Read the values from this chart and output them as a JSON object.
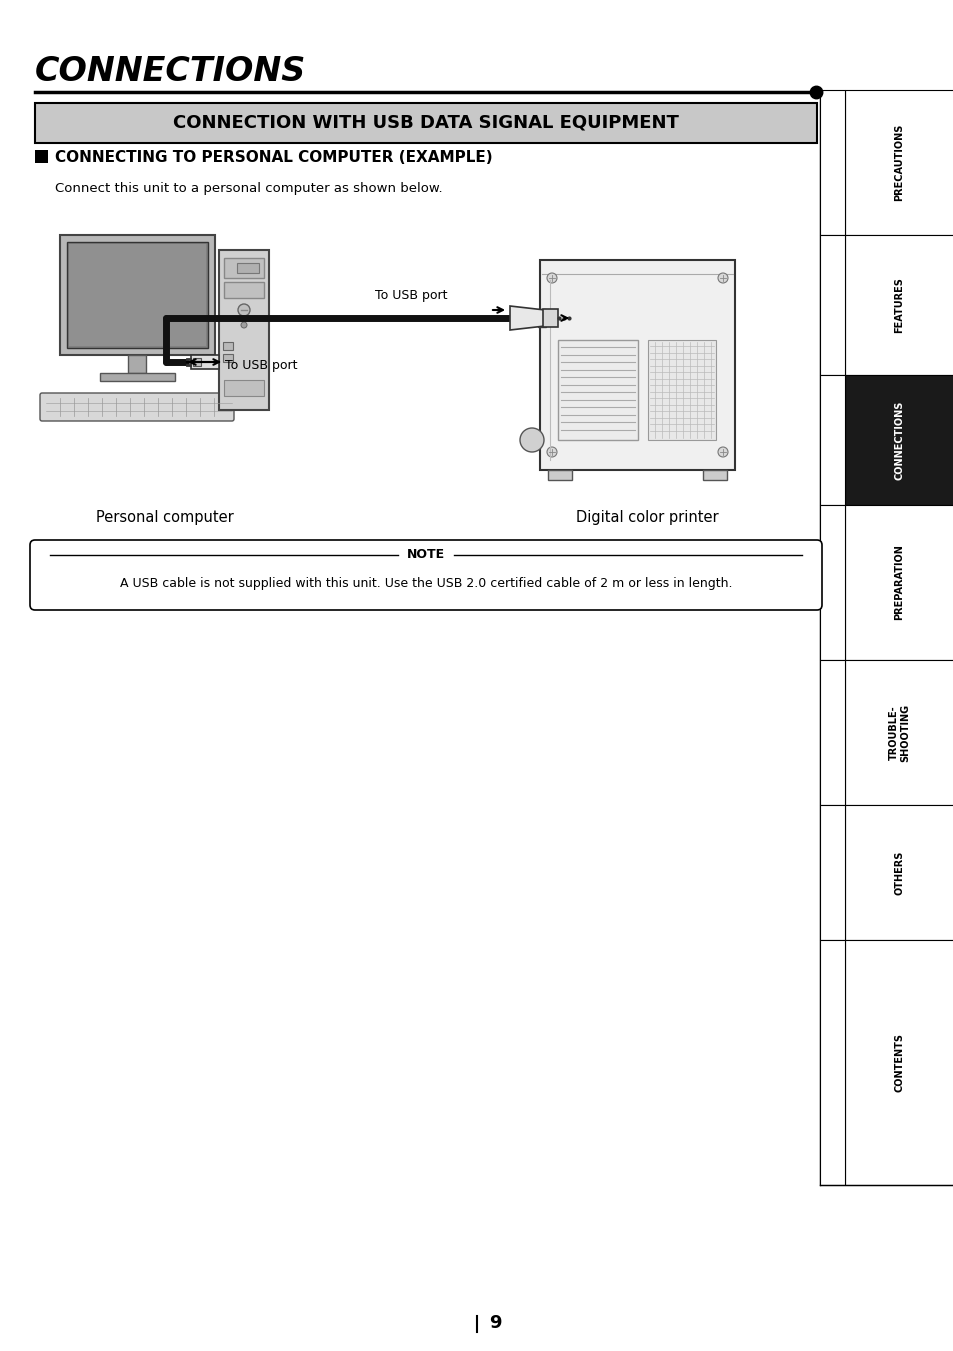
{
  "title": "CONNECTIONS",
  "section_title": "CONNECTION WITH USB DATA SIGNAL EQUIPMENT",
  "subsection_title": "CONNECTING TO PERSONAL COMPUTER (EXAMPLE)",
  "description": "Connect this unit to a personal computer as shown below.",
  "label_pc": "Personal computer",
  "label_printer": "Digital color printer",
  "label_usb_top": "To USB port",
  "label_usb_bottom": "To USB port",
  "note_title": "NOTE",
  "note_text": "A USB cable is not supplied with this unit. Use the USB 2.0 certified cable of 2 m or less in length.",
  "sidebar_labels": [
    "PRECAUTIONS",
    "FEATURES",
    "CONNECTIONS",
    "PREPARATION",
    "TROUBLE-\nSHOOTING",
    "OTHERS",
    "CONTENTS"
  ],
  "sidebar_active_index": 2,
  "page_number": "9",
  "bg_color": "#ffffff",
  "section_bg": "#c8c8c8",
  "note_bg": "#ffffff"
}
